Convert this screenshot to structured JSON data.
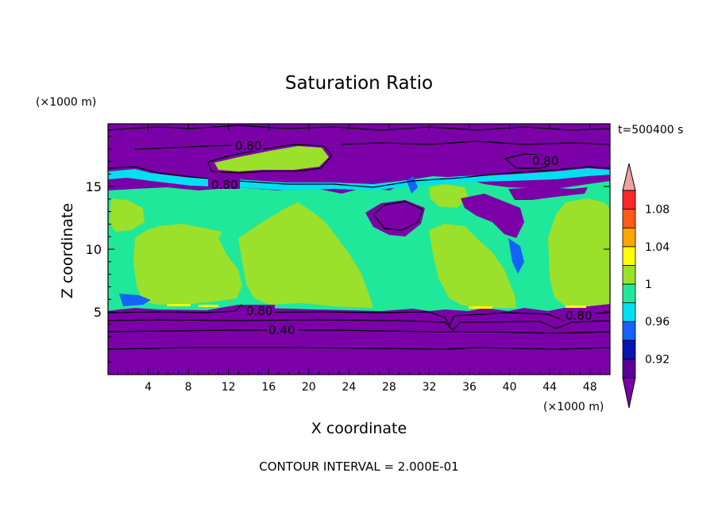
{
  "chart_data": {
    "type": "heatmap",
    "title": "Saturation Ratio",
    "xlabel": "X coordinate",
    "ylabel": "Z coordinate",
    "x_unit": "(×1000 m)",
    "y_unit": "(×1000 m)",
    "time_label": "t=500400 s",
    "footer": "CONTOUR INTERVAL = 2.000E-01",
    "xlim": [
      0,
      50
    ],
    "ylim": [
      0,
      20
    ],
    "x_ticks": [
      4,
      8,
      12,
      16,
      20,
      24,
      28,
      32,
      36,
      40,
      44,
      48
    ],
    "y_ticks": [
      5,
      10,
      15
    ],
    "colorbar": {
      "labels": [
        "0.92",
        "0.96",
        "1",
        "1.04",
        "1.08"
      ],
      "bins": [
        {
          "range": "<0.90",
          "color": "#7b00a8"
        },
        {
          "range": "0.90-0.92",
          "color": "#5a0098"
        },
        {
          "range": "0.92-0.94",
          "color": "#0a14b0"
        },
        {
          "range": "0.94-0.96",
          "color": "#1463ff"
        },
        {
          "range": "0.96-0.98",
          "color": "#00e0f0"
        },
        {
          "range": "0.98-1.00",
          "color": "#1fe89a"
        },
        {
          "range": "1.00-1.02",
          "color": "#9be02a"
        },
        {
          "range": "1.02-1.04",
          "color": "#ffff00"
        },
        {
          "range": "1.04-1.06",
          "color": "#ffa500"
        },
        {
          "range": "1.06-1.08",
          "color": "#ff5a14"
        },
        {
          "range": "1.08-1.10",
          "color": "#ff2828"
        },
        {
          "range": ">1.10",
          "color": "#f0a0a0"
        }
      ]
    },
    "contour_labels": [
      "0.80",
      "0.80",
      "0.80",
      "0.80",
      "0.80",
      "0.40"
    ],
    "fields": {
      "background": "#7b00a8",
      "saturated_fill": "#1fe89a",
      "supersaturated_fill": "#9be02a"
    }
  }
}
